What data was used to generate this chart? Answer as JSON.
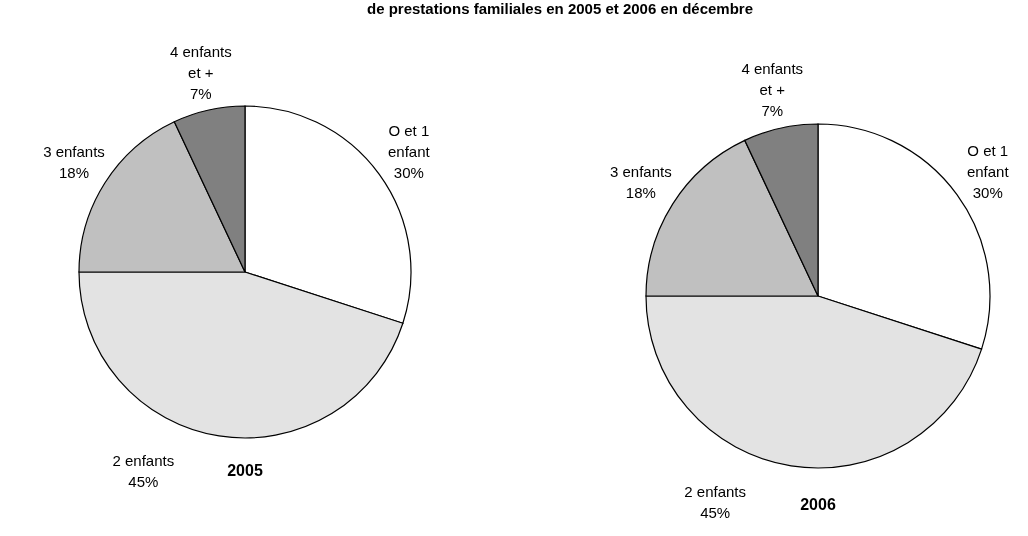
{
  "chart_data": [
    {
      "type": "pie",
      "title": "de prestations familiales en 2005 et 2006 en décembre",
      "xlabel": "2005",
      "categories": [
        "O et 1 enfant",
        "2 enfants",
        "3 enfants",
        "4 enfants et +"
      ],
      "values": [
        30,
        45,
        18,
        7
      ],
      "value_labels": [
        "30%",
        "45%",
        "18%",
        "7%"
      ],
      "colors": [
        "#ffffff",
        "#e3e3e3",
        "#c0c0c0",
        "#808080"
      ]
    },
    {
      "type": "pie",
      "xlabel": "2006",
      "categories": [
        "O et 1 enfant",
        "2 enfants",
        "3 enfants",
        "4 enfants et +"
      ],
      "values": [
        30,
        45,
        18,
        7
      ],
      "value_labels": [
        "30%",
        "45%",
        "18%",
        "7%"
      ],
      "colors": [
        "#ffffff",
        "#e3e3e3",
        "#c0c0c0",
        "#808080"
      ]
    }
  ]
}
